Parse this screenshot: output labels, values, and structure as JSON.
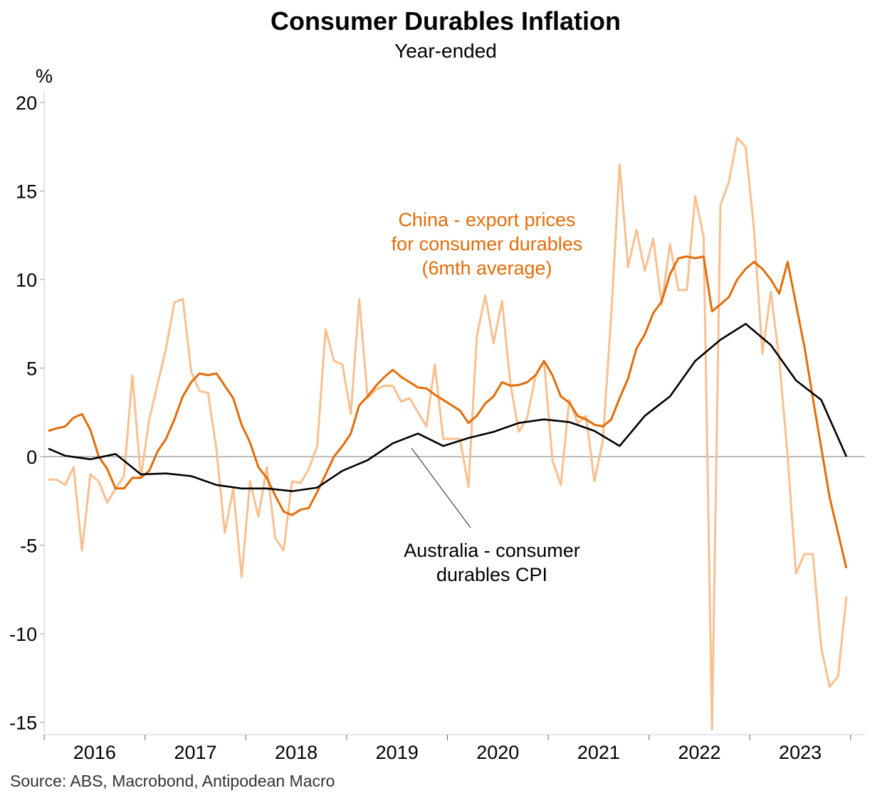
{
  "chart_data": {
    "type": "line",
    "title": "Consumer Durables Inflation",
    "subtitle": "Year-ended",
    "ylabel": "%",
    "xlabel": "",
    "ylim": [
      -15.5,
      20.5
    ],
    "yticks": [
      20,
      15,
      10,
      5,
      0,
      -5,
      -10,
      -15
    ],
    "xticks": [
      "2016",
      "2017",
      "2018",
      "2019",
      "2020",
      "2021",
      "2022",
      "2023"
    ],
    "grid": false,
    "source": "Source: ABS, Macrobond, Antipodean Macro",
    "colors": {
      "china_monthly": "#F9BF8F",
      "china_avg": "#E36C09",
      "australia": "#000000",
      "zero_line": "#777777"
    },
    "annotations": {
      "china": [
        "China - export prices",
        "for consumer durables",
        "(6mth average)"
      ],
      "australia": [
        "Australia - consumer",
        "durables CPI"
      ]
    },
    "series": [
      {
        "name": "China - export prices for consumer durables (monthly)",
        "start": "2016-01",
        "frequency": "monthly",
        "values": [
          -1.3,
          -1.3,
          -1.6,
          -0.6,
          -5.3,
          -1.0,
          -1.4,
          -2.6,
          -1.8,
          -1.1,
          4.6,
          -1.2,
          2.1,
          4.1,
          6.1,
          8.7,
          8.9,
          4.8,
          3.7,
          3.6,
          0.4,
          -4.3,
          -1.8,
          -6.8,
          -1.4,
          -3.4,
          -0.6,
          -4.6,
          -5.3,
          -1.4,
          -1.5,
          -0.7,
          0.6,
          7.2,
          5.4,
          5.2,
          2.4,
          8.9,
          3.3,
          3.8,
          4.0,
          4.0,
          3.1,
          3.3,
          2.5,
          1.7,
          5.2,
          1.0,
          1.0,
          1.0,
          -1.7,
          6.8,
          9.1,
          6.4,
          8.8,
          4.1,
          1.4,
          2.2,
          4.6,
          5.4,
          -0.2,
          -1.6,
          3.2,
          1.9,
          2.3,
          -1.4,
          0.9,
          8.0,
          16.5,
          10.7,
          12.8,
          10.5,
          12.3,
          8.6,
          12.0,
          9.4,
          9.4,
          14.7,
          12.4,
          -15.4,
          14.2,
          15.5,
          18.0,
          17.5,
          12.8,
          5.8,
          9.3,
          5.5,
          0.0,
          -6.6,
          -5.5,
          -5.5,
          -10.8,
          -13.0,
          -12.4,
          -7.9
        ]
      },
      {
        "name": "China - export prices for consumer durables (6mth average)",
        "start": "2016-01",
        "frequency": "monthly",
        "values": [
          1.45,
          1.6,
          1.7,
          2.2,
          2.4,
          1.5,
          0.0,
          -0.7,
          -1.8,
          -1.8,
          -1.2,
          -1.2,
          -0.8,
          0.3,
          1.0,
          2.1,
          3.4,
          4.2,
          4.7,
          4.6,
          4.7,
          4.0,
          3.3,
          1.8,
          0.8,
          -0.6,
          -1.2,
          -2.2,
          -3.1,
          -3.3,
          -3.0,
          -2.9,
          -2.0,
          -1.0,
          0.0,
          0.6,
          1.3,
          2.9,
          3.4,
          4.0,
          4.5,
          4.9,
          4.5,
          4.2,
          3.9,
          3.85,
          3.5,
          3.2,
          2.9,
          2.6,
          1.9,
          2.3,
          3.0,
          3.4,
          4.2,
          4.0,
          4.05,
          4.2,
          4.6,
          5.4,
          4.6,
          3.4,
          3.05,
          2.3,
          2.1,
          1.8,
          1.7,
          2.1,
          3.3,
          4.4,
          6.1,
          6.9,
          8.1,
          8.75,
          10.3,
          11.2,
          11.3,
          11.2,
          11.3,
          8.2,
          8.6,
          9.0,
          10.0,
          10.6,
          11.0,
          10.6,
          10.0,
          9.2,
          11.0,
          8.6,
          6.2,
          3.3,
          0.5,
          -2.3,
          -4.3,
          -6.3
        ]
      },
      {
        "name": "Australia - consumer durables CPI",
        "frequency": "quarterly",
        "dates": [
          "2016-01",
          "2016-03",
          "2016-06",
          "2016-09",
          "2016-12",
          "2017-03",
          "2017-06",
          "2017-09",
          "2017-12",
          "2018-03",
          "2018-06",
          "2018-09",
          "2018-12",
          "2019-03",
          "2019-06",
          "2019-09",
          "2019-12",
          "2020-03",
          "2020-06",
          "2020-09",
          "2020-12",
          "2021-03",
          "2021-06",
          "2021-09",
          "2021-12",
          "2022-03",
          "2022-06",
          "2022-09",
          "2022-12",
          "2023-03",
          "2023-06",
          "2023-09",
          "2023-12"
        ],
        "values": [
          0.45,
          0.05,
          -0.15,
          0.15,
          -1.0,
          -0.95,
          -1.1,
          -1.6,
          -1.8,
          -1.8,
          -1.95,
          -1.75,
          -0.8,
          -0.2,
          0.75,
          1.3,
          0.6,
          1.05,
          1.4,
          1.9,
          2.1,
          1.95,
          1.45,
          0.6,
          2.3,
          3.4,
          5.4,
          6.6,
          7.5,
          6.3,
          4.3,
          3.2,
          0.0
        ]
      }
    ]
  }
}
